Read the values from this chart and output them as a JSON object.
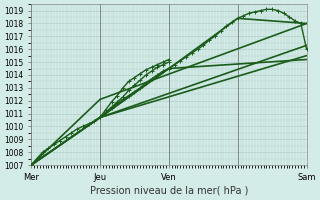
{
  "title": "",
  "xlabel": "Pression niveau de la mer( hPa )",
  "ylabel": "",
  "bg_color": "#d4ece8",
  "grid_color": "#b0cfc8",
  "line_color": "#1a5c1a",
  "ylim": [
    1007,
    1019.5
  ],
  "xlim": [
    0,
    96
  ],
  "yticks": [
    1007,
    1008,
    1009,
    1010,
    1011,
    1012,
    1013,
    1014,
    1015,
    1016,
    1017,
    1018,
    1019
  ],
  "xtick_positions": [
    0,
    24,
    48,
    72,
    96
  ],
  "xtick_labels": [
    "Mer",
    "Jeu",
    "Ven",
    "Sam"
  ],
  "xtick_label_positions": [
    0,
    24,
    48,
    96
  ],
  "lines": [
    {
      "x": [
        0,
        2,
        4,
        6,
        8,
        10,
        12,
        14,
        16,
        18,
        20,
        22,
        24,
        26,
        28,
        30,
        32,
        34,
        36,
        38,
        40,
        42,
        44,
        46,
        48,
        50,
        52,
        54,
        56,
        58,
        60,
        62,
        64,
        66,
        68,
        70,
        72,
        74,
        76,
        78,
        80,
        82,
        84,
        86,
        88,
        90,
        92,
        94,
        96
      ],
      "y": [
        1007.0,
        1007.5,
        1008.0,
        1008.3,
        1008.6,
        1008.9,
        1009.2,
        1009.5,
        1009.8,
        1010.0,
        1010.2,
        1010.4,
        1010.7,
        1011.0,
        1011.4,
        1011.8,
        1012.1,
        1012.4,
        1012.7,
        1013.0,
        1013.4,
        1013.7,
        1014.0,
        1014.3,
        1014.5,
        1014.8,
        1015.1,
        1015.4,
        1015.7,
        1016.0,
        1016.3,
        1016.7,
        1017.0,
        1017.4,
        1017.8,
        1018.1,
        1018.4,
        1018.6,
        1018.8,
        1018.9,
        1019.0,
        1019.1,
        1019.1,
        1019.0,
        1018.8,
        1018.5,
        1018.2,
        1018.0,
        1016.0
      ],
      "marker": "+",
      "lw": 1.0
    },
    {
      "x": [
        0,
        24,
        96
      ],
      "y": [
        1007.0,
        1010.7,
        1015.5
      ],
      "marker": null,
      "lw": 1.2
    },
    {
      "x": [
        0,
        24,
        96
      ],
      "y": [
        1007.0,
        1010.7,
        1016.3
      ],
      "marker": null,
      "lw": 1.2
    },
    {
      "x": [
        0,
        24,
        96
      ],
      "y": [
        1007.0,
        1012.1,
        1018.0
      ],
      "marker": null,
      "lw": 1.2
    },
    {
      "x": [
        0,
        24,
        48,
        96
      ],
      "y": [
        1007.0,
        1010.7,
        1014.5,
        1015.2
      ],
      "marker": null,
      "lw": 1.2
    },
    {
      "x": [
        0,
        24,
        48,
        72,
        96
      ],
      "y": [
        1007.0,
        1010.7,
        1014.5,
        1018.4,
        1018.0
      ],
      "marker": null,
      "lw": 1.2
    },
    {
      "x": [
        24,
        26,
        28,
        30,
        32,
        34,
        36,
        38,
        40,
        42,
        44,
        46,
        48
      ],
      "y": [
        1010.7,
        1011.1,
        1011.5,
        1011.9,
        1012.3,
        1012.8,
        1013.2,
        1013.6,
        1014.0,
        1014.3,
        1014.6,
        1014.8,
        1015.0
      ],
      "marker": "+",
      "lw": 1.0
    },
    {
      "x": [
        24,
        26,
        28,
        30,
        32,
        34,
        36,
        38,
        40,
        42,
        44,
        46,
        48
      ],
      "y": [
        1010.7,
        1011.3,
        1011.9,
        1012.4,
        1013.0,
        1013.5,
        1013.8,
        1014.1,
        1014.4,
        1014.6,
        1014.8,
        1015.0,
        1015.2
      ],
      "marker": "+",
      "lw": 1.0
    }
  ]
}
